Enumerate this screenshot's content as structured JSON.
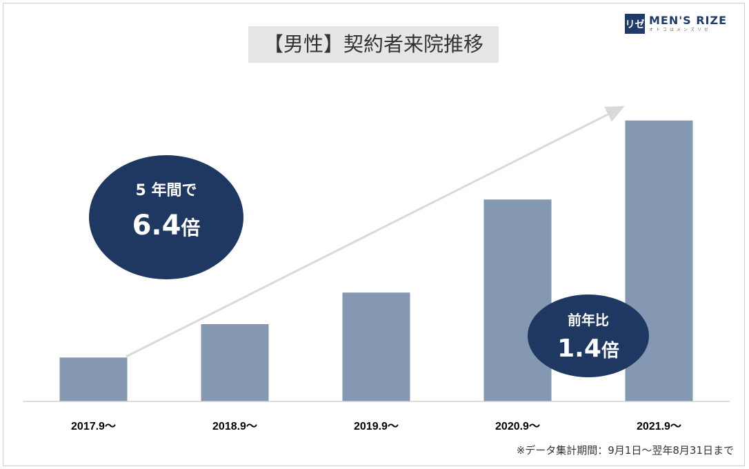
{
  "logo": {
    "mark": "リゼ",
    "name": "MEN'S RIZE",
    "sub": "オトコはメンズリゼ"
  },
  "chart_data": {
    "type": "bar",
    "title": "【男性】契約者来院推移",
    "categories": [
      "2017.9～",
      "2018.9～",
      "2019.9～",
      "2020.9～",
      "2021.9～"
    ],
    "values": [
      1.0,
      1.76,
      2.48,
      4.6,
      6.4
    ],
    "ylim": [
      0,
      6.6
    ],
    "grid": false,
    "bar_color": "#8598b1",
    "annotations": [
      {
        "line1": "5 年間で",
        "line2": "6.4",
        "unit": "倍"
      },
      {
        "line1": "前年比",
        "line2": "1.4",
        "unit": "倍"
      }
    ],
    "bubble_color": "#1f3862",
    "footnote": "※データ集計期間：9月1日～翌年8月31日まで"
  }
}
